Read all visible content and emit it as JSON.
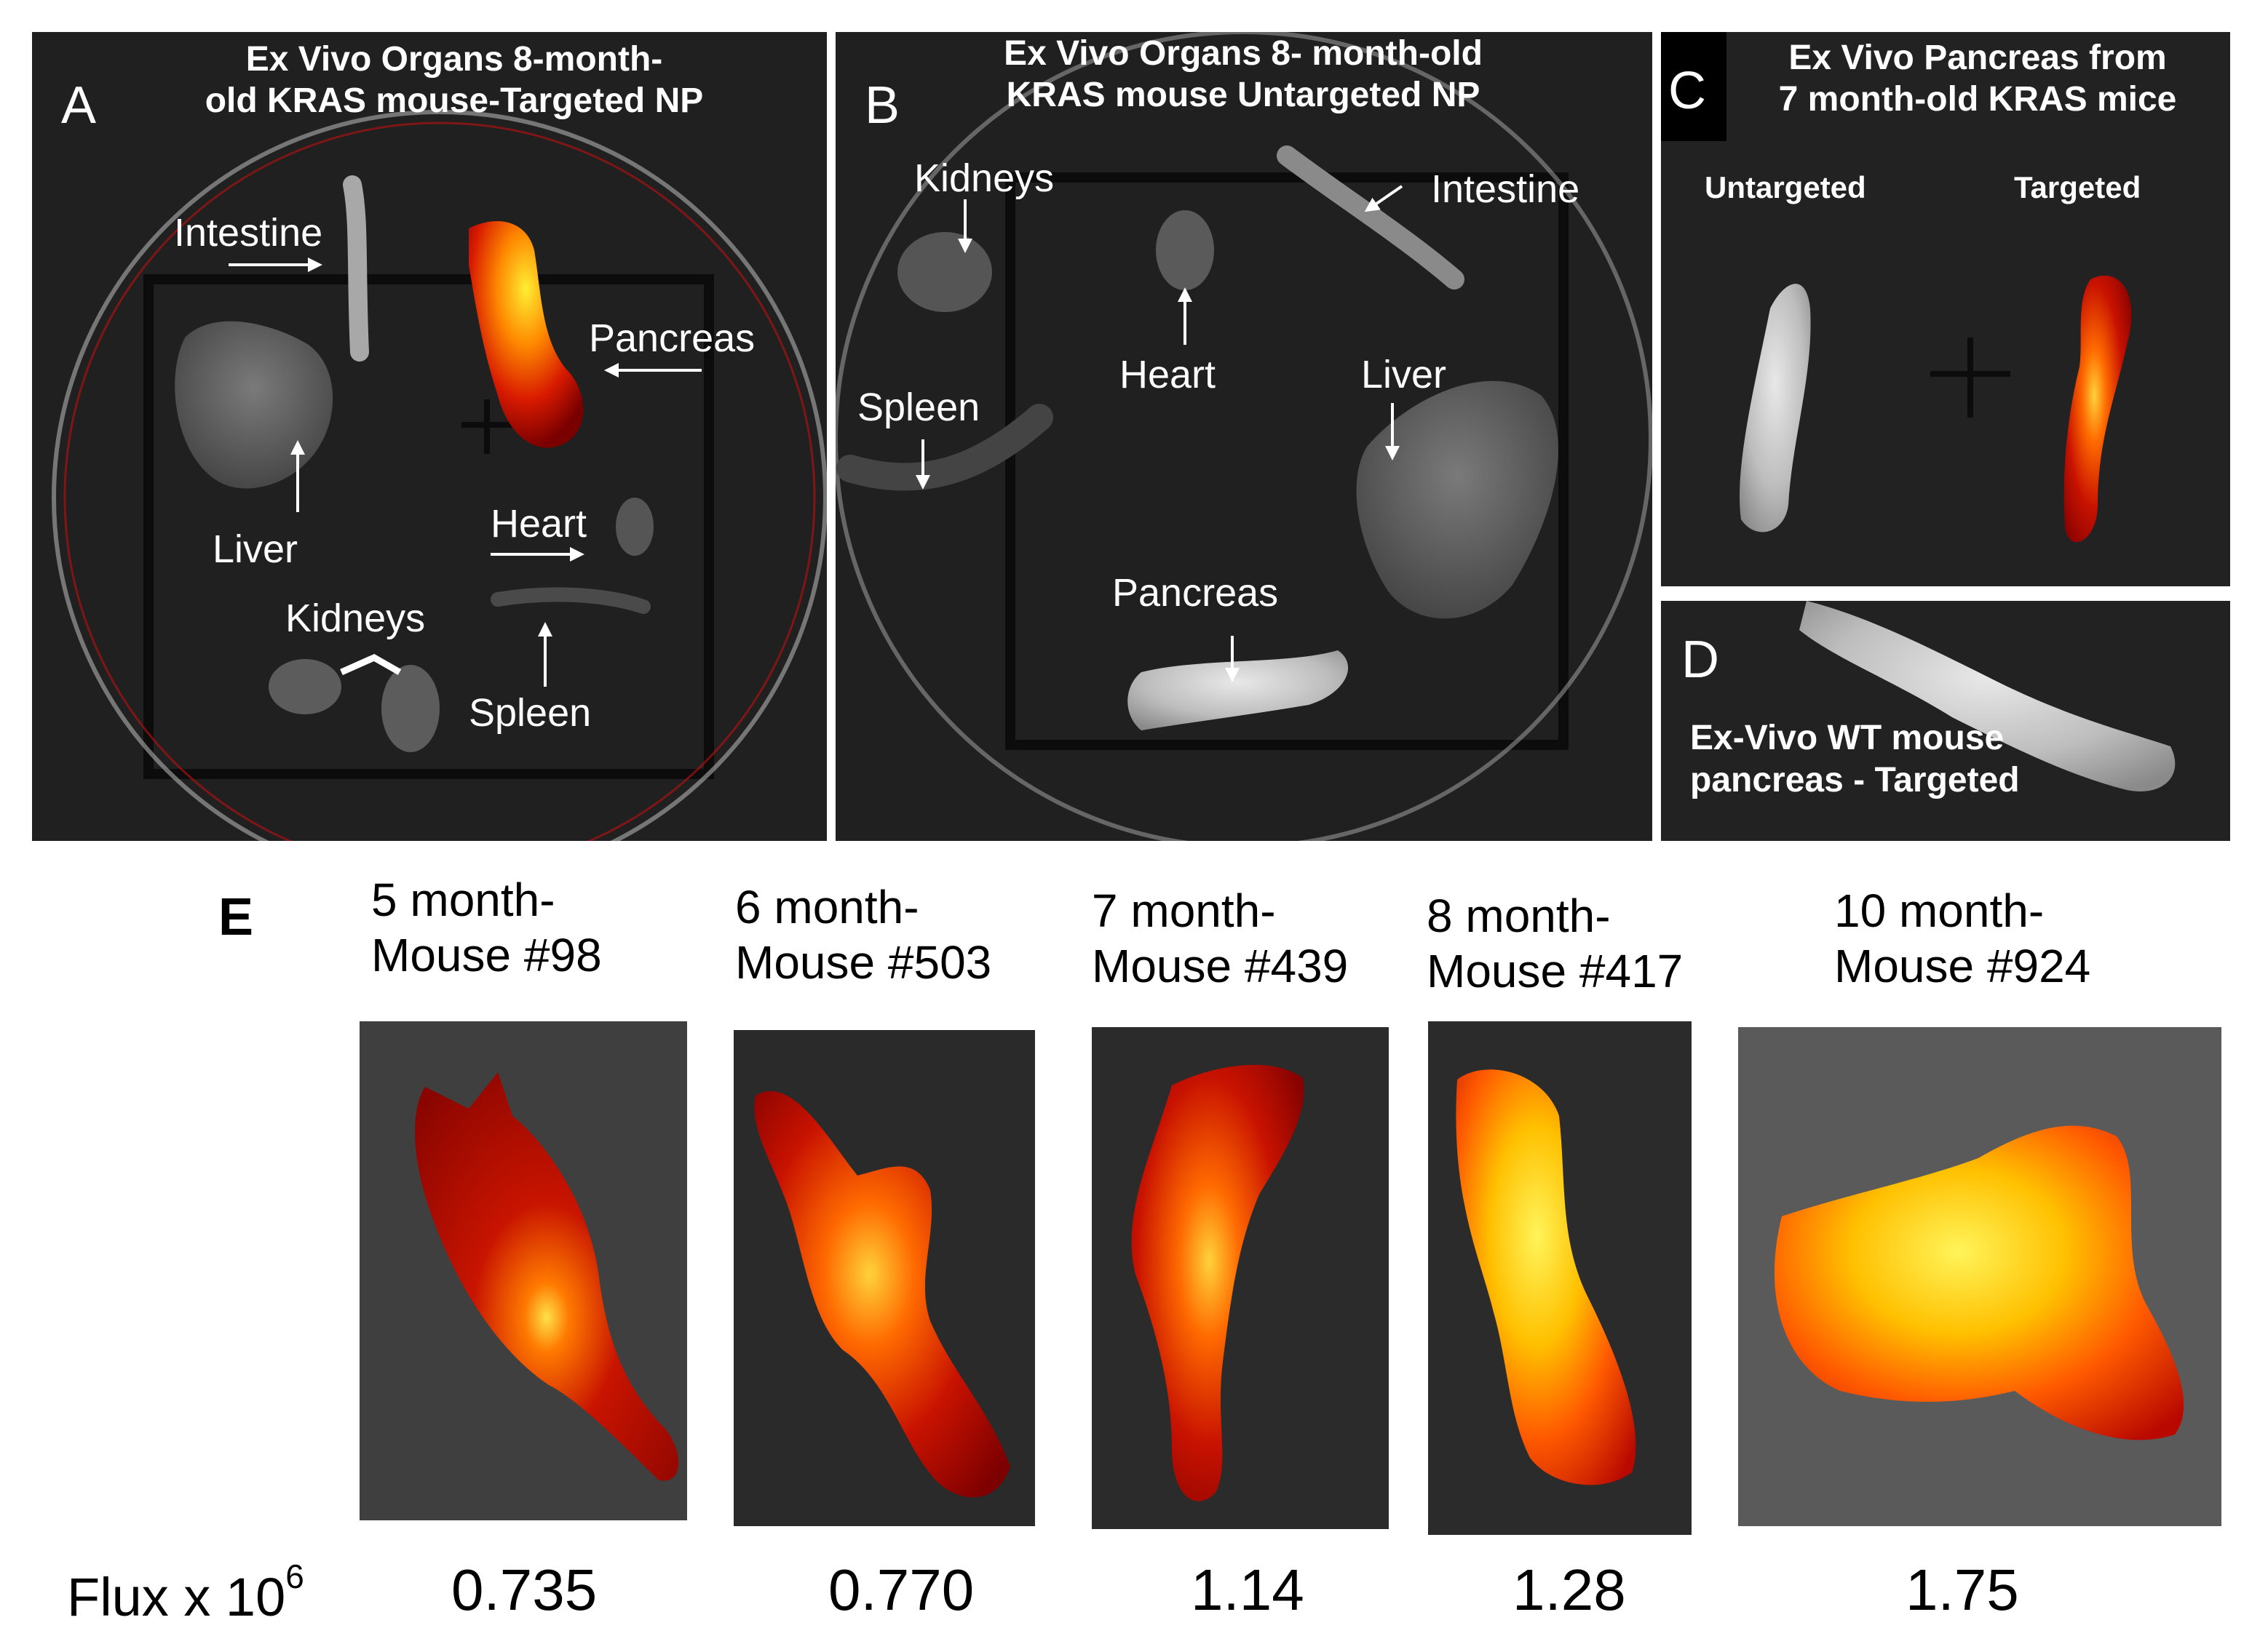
{
  "panel_a": {
    "letter": "A",
    "title_line1": "Ex Vivo Organs 8-month-",
    "title_line2": "old KRAS mouse-Targeted NP",
    "labels": {
      "intestine": "Intestine",
      "pancreas": "Pancreas",
      "liver": "Liver",
      "heart": "Heart",
      "kidneys": "Kidneys",
      "spleen": "Spleen"
    }
  },
  "panel_b": {
    "letter": "B",
    "title_line1": "Ex Vivo Organs 8- month-old",
    "title_line2": "KRAS mouse Untargeted NP",
    "labels": {
      "kidneys": "Kidneys",
      "heart": "Heart",
      "intestine": "Intestine",
      "spleen": "Spleen",
      "liver": "Liver",
      "pancreas": "Pancreas"
    }
  },
  "panel_c": {
    "letter": "C",
    "title_line1": "Ex Vivo Pancreas from",
    "title_line2": "7 month-old KRAS mice",
    "untargeted": "Untargeted",
    "targeted": "Targeted"
  },
  "panel_d": {
    "letter": "D",
    "caption_line1": "Ex-Vivo WT mouse",
    "caption_line2": "pancreas - Targeted"
  },
  "panel_e": {
    "letter": "E",
    "flux_label": "Flux x 10",
    "flux_exponent": "6",
    "samples": [
      {
        "line1": "5 month-",
        "line2": "Mouse #98",
        "flux": "0.735"
      },
      {
        "line1": "6 month-",
        "line2": "Mouse #503",
        "flux": "0.770"
      },
      {
        "line1": "7 month-",
        "line2": "Mouse #439",
        "flux": "1.14"
      },
      {
        "line1": "8 month-",
        "line2": "Mouse #417",
        "flux": "1.28"
      },
      {
        "line1": "10 month-",
        "line2": "Mouse #924",
        "flux": "1.75"
      }
    ]
  },
  "colors": {
    "background": "#1e1e1e",
    "tissue_gray": "#9a9a9a",
    "heat_dark": "#8b0000",
    "heat_mid": "#e02000",
    "heat_hot": "#ff9a00",
    "heat_max": "#ffee33"
  }
}
